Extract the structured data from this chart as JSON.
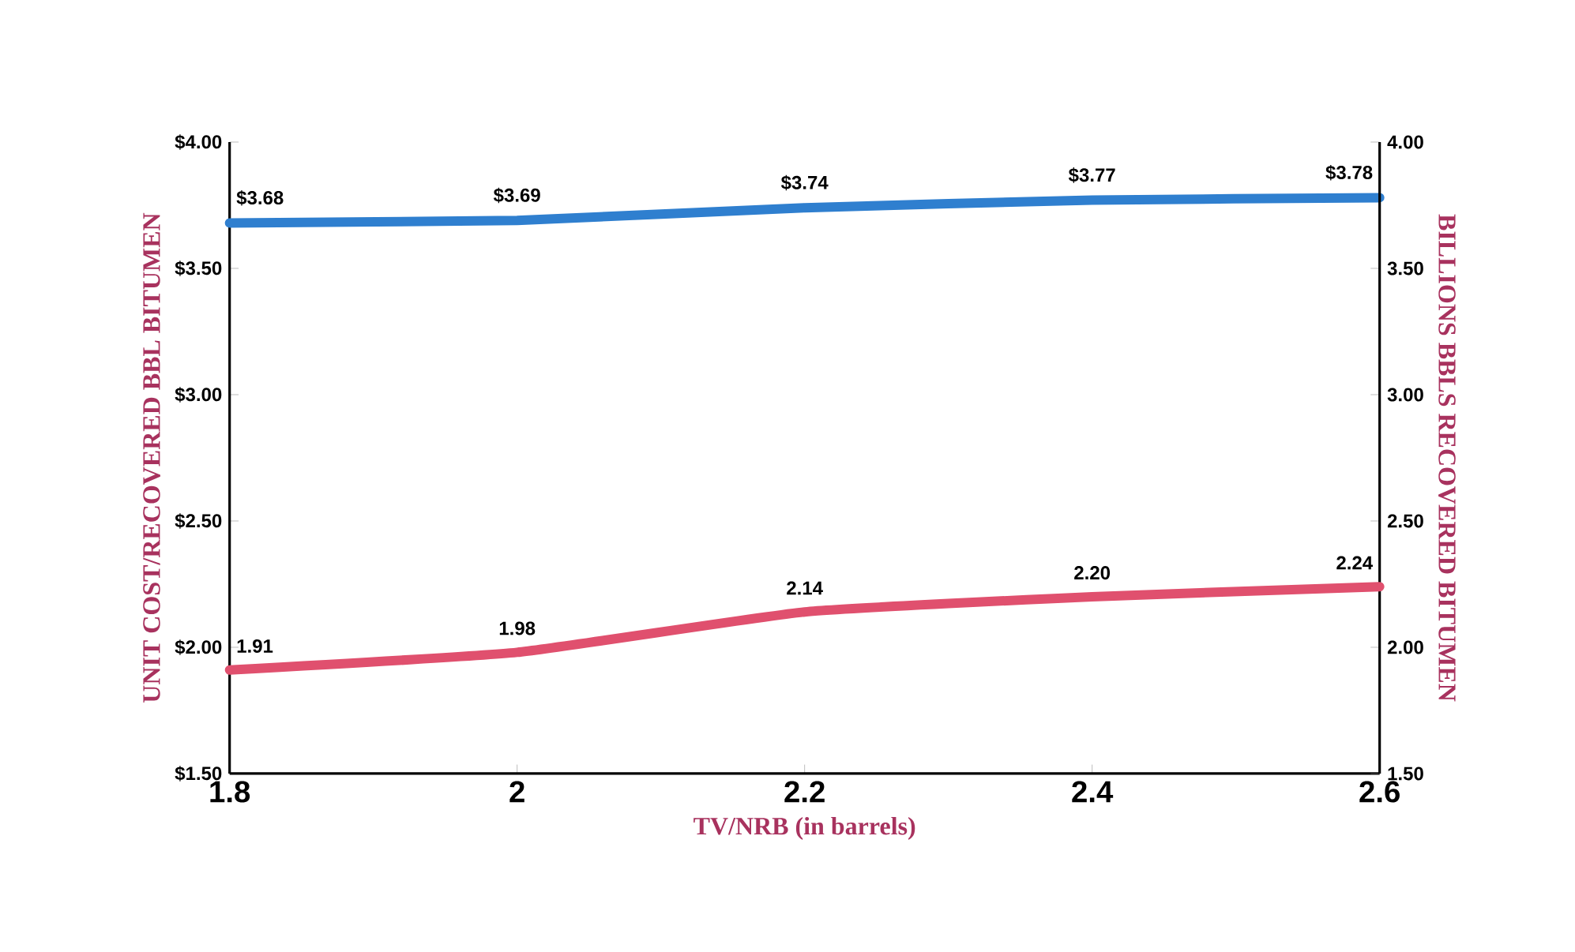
{
  "chart_data": {
    "type": "line",
    "xlabel": "TV/NRB (in barrels)",
    "ylabel": "UNIT COST/RECOVERED BBL BITUMEN",
    "y2label": "BILLIONS BBLS RECOVERED BITUMEN",
    "x": [
      1.8,
      2,
      2.2,
      2.4,
      2.6
    ],
    "series": [
      {
        "color": "#2f7fcf",
        "values": [
          3.68,
          3.69,
          3.74,
          3.77,
          3.78
        ],
        "value_labels": [
          "$3.68",
          "$3.69",
          "$3.74",
          "$3.77",
          "$3.78"
        ]
      },
      {
        "color": "#e0506e",
        "axis": "y2",
        "values": [
          1.91,
          1.98,
          2.14,
          2.2,
          2.24
        ],
        "value_labels": [
          "1.91",
          "1.98",
          "2.14",
          "2.20",
          "2.24"
        ]
      }
    ],
    "xlim": [
      1.8,
      2.6
    ],
    "xticks": [
      1.8,
      2,
      2.2,
      2.4,
      2.6
    ],
    "ylim": [
      1.5,
      4.0
    ],
    "yticks": [
      {
        "value": 1.5,
        "label": "$1.50"
      },
      {
        "value": 2.0,
        "label": "$2.00"
      },
      {
        "value": 2.5,
        "label": "$2.50"
      },
      {
        "value": 3.0,
        "label": "$3.00"
      },
      {
        "value": 3.5,
        "label": "$3.50"
      },
      {
        "value": 4.0,
        "label": "$4.00"
      }
    ],
    "y2lim": [
      1.5,
      4.0
    ],
    "y2ticks": [
      {
        "value": 1.5,
        "label": "1.50"
      },
      {
        "value": 2.0,
        "label": "2.00"
      },
      {
        "value": 2.5,
        "label": "2.50"
      },
      {
        "value": 3.0,
        "label": "3.00"
      },
      {
        "value": 3.5,
        "label": "3.50"
      },
      {
        "value": 4.0,
        "label": "4.00"
      }
    ],
    "grid": false
  }
}
